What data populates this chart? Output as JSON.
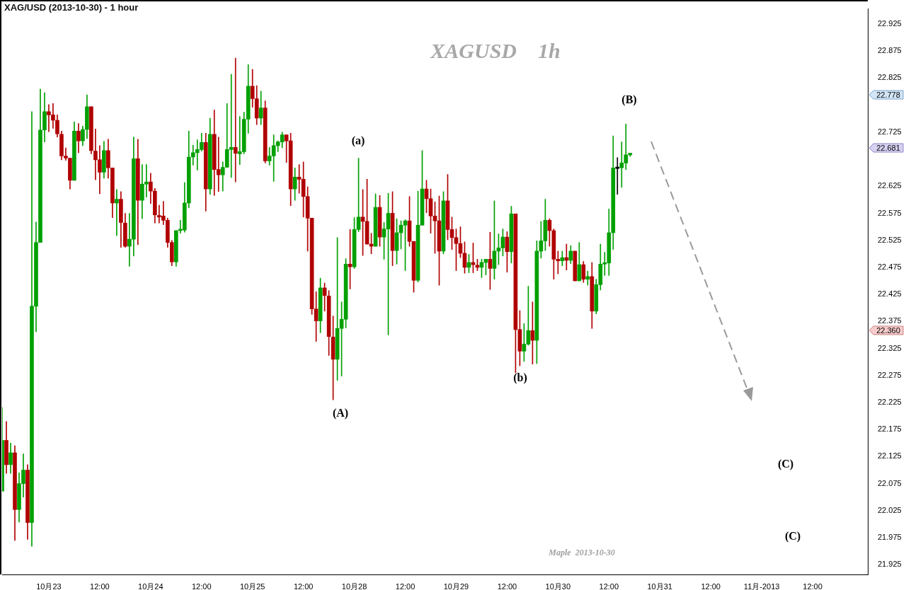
{
  "chart_data": {
    "type": "candlestick",
    "title": "XAG/USD (2013-10-30) - 1 hour",
    "subtitle": "XAGUSD    1h",
    "categories": [
      null,
      null,
      null,
      null,
      null,
      null,
      null,
      null,
      null,
      null,
      null,
      "10月23",
      null,
      null,
      null,
      null,
      null,
      null,
      null,
      null,
      null,
      null,
      null,
      "12:00",
      null,
      null,
      null,
      null,
      null,
      null,
      null,
      null,
      null,
      null,
      null,
      "10月24",
      null,
      null,
      null,
      null,
      null,
      null,
      null,
      null,
      null,
      null,
      null,
      "12:00",
      null,
      null,
      null,
      null,
      null,
      null,
      null,
      null,
      null,
      null,
      null,
      "10月25",
      null,
      null,
      null,
      null,
      null,
      null,
      null,
      null,
      null,
      null,
      null,
      "12:00",
      null,
      null,
      null,
      null,
      null,
      null,
      null,
      null,
      null,
      null,
      null,
      "10月28",
      null,
      null,
      null,
      null,
      null,
      null,
      null,
      null,
      null,
      null,
      null,
      "12:00",
      null,
      null,
      null,
      null,
      null,
      null,
      null,
      null,
      null,
      null,
      null,
      "10月29",
      null,
      null,
      null,
      null,
      null,
      null,
      null,
      null,
      null,
      null,
      null,
      "12:00",
      null,
      null,
      null,
      null,
      null,
      null,
      null,
      null,
      null,
      null,
      null,
      "10月30",
      null,
      null,
      null,
      null,
      null,
      null,
      null,
      null,
      null,
      null,
      null,
      "12:00",
      null,
      null,
      null,
      null,
      null,
      null,
      null,
      null,
      null,
      null,
      null,
      "10月31",
      null,
      null,
      null,
      null,
      null,
      null,
      null,
      null,
      null,
      null,
      null,
      "12:00",
      null,
      null,
      null,
      null,
      null,
      null,
      null,
      null,
      null,
      null,
      null,
      "11月-2013",
      null,
      null,
      null,
      null,
      null,
      null,
      null,
      null,
      null,
      null,
      null,
      "12:00",
      null,
      null,
      null,
      null,
      null,
      null,
      null,
      null,
      null,
      null,
      null,
      null,
      null
    ],
    "ohlc": [
      [
        22.061,
        22.216,
        22.061,
        22.155
      ],
      [
        22.155,
        22.19,
        22.094,
        22.11
      ],
      [
        22.11,
        22.15,
        22.094,
        22.132
      ],
      [
        22.132,
        22.145,
        21.97,
        22.027
      ],
      [
        22.027,
        22.095,
        22.004,
        22.075
      ],
      [
        22.075,
        22.13,
        22.05,
        22.1
      ],
      [
        22.1,
        22.11,
        21.972,
        22.003
      ],
      [
        22.003,
        22.763,
        21.959,
        22.403
      ],
      [
        22.403,
        22.559,
        22.356,
        22.521
      ],
      [
        22.521,
        22.805,
        22.521,
        22.729
      ],
      [
        22.729,
        22.798,
        22.707,
        22.763
      ],
      [
        22.763,
        22.776,
        22.726,
        22.757
      ],
      [
        22.757,
        22.778,
        22.732,
        22.747
      ],
      [
        22.747,
        22.757,
        22.716,
        22.722
      ],
      [
        22.721,
        22.727,
        22.674,
        22.681
      ],
      [
        22.681,
        22.696,
        22.673,
        22.677
      ],
      [
        22.677,
        22.677,
        22.62,
        22.636
      ],
      [
        22.636,
        22.744,
        22.636,
        22.727
      ],
      [
        22.727,
        22.741,
        22.687,
        22.709
      ],
      [
        22.709,
        22.736,
        22.7,
        22.73
      ],
      [
        22.73,
        22.794,
        22.713,
        22.772
      ],
      [
        22.772,
        22.772,
        22.685,
        22.691
      ],
      [
        22.69,
        22.731,
        22.637,
        22.674
      ],
      [
        22.674,
        22.7,
        22.611,
        22.651
      ],
      [
        22.651,
        22.708,
        22.64,
        22.691
      ],
      [
        22.691,
        22.712,
        22.64,
        22.659
      ],
      [
        22.659,
        22.659,
        22.567,
        22.594
      ],
      [
        22.594,
        22.619,
        22.534,
        22.601
      ],
      [
        22.601,
        22.615,
        22.512,
        22.558
      ],
      [
        22.557,
        22.575,
        22.512,
        22.514
      ],
      [
        22.514,
        22.575,
        22.477,
        22.527
      ],
      [
        22.527,
        22.716,
        22.496,
        22.676
      ],
      [
        22.676,
        22.712,
        22.517,
        22.599
      ],
      [
        22.599,
        22.665,
        22.565,
        22.629
      ],
      [
        22.629,
        22.665,
        22.605,
        22.633
      ],
      [
        22.633,
        22.649,
        22.593,
        22.616
      ],
      [
        22.616,
        22.621,
        22.557,
        22.572
      ],
      [
        22.571,
        22.59,
        22.557,
        22.568
      ],
      [
        22.57,
        22.597,
        22.554,
        22.562
      ],
      [
        22.562,
        22.566,
        22.512,
        22.521
      ],
      [
        22.521,
        22.525,
        22.478,
        22.485
      ],
      [
        22.485,
        22.543,
        22.477,
        22.543
      ],
      [
        22.543,
        22.562,
        22.538,
        22.544
      ],
      [
        22.544,
        22.632,
        22.54,
        22.594
      ],
      [
        22.594,
        22.727,
        22.585,
        22.679
      ],
      [
        22.679,
        22.701,
        22.664,
        22.687
      ],
      [
        22.687,
        22.711,
        22.655,
        22.693
      ],
      [
        22.693,
        22.723,
        22.69,
        22.706
      ],
      [
        22.706,
        22.723,
        22.579,
        22.62
      ],
      [
        22.62,
        22.751,
        22.61,
        22.721
      ],
      [
        22.721,
        22.766,
        22.608,
        22.656
      ],
      [
        22.656,
        22.716,
        22.615,
        22.646
      ],
      [
        22.646,
        22.67,
        22.616,
        22.66
      ],
      [
        22.66,
        22.778,
        22.66,
        22.693
      ],
      [
        22.693,
        22.832,
        22.641,
        22.697
      ],
      [
        22.697,
        22.862,
        22.633,
        22.686
      ],
      [
        22.685,
        22.754,
        22.665,
        22.689
      ],
      [
        22.689,
        22.762,
        22.685,
        22.749
      ],
      [
        22.749,
        22.85,
        22.723,
        22.81
      ],
      [
        22.81,
        22.841,
        22.771,
        22.787
      ],
      [
        22.787,
        22.811,
        22.739,
        22.751
      ],
      [
        22.751,
        22.801,
        22.739,
        22.77
      ],
      [
        22.77,
        22.783,
        22.668,
        22.672
      ],
      [
        22.672,
        22.697,
        22.664,
        22.681
      ],
      [
        22.681,
        22.72,
        22.634,
        22.7
      ],
      [
        22.7,
        22.709,
        22.689,
        22.707
      ],
      [
        22.707,
        22.725,
        22.696,
        22.72
      ],
      [
        22.72,
        22.72,
        22.669,
        22.709
      ],
      [
        22.709,
        22.723,
        22.589,
        22.62
      ],
      [
        22.62,
        22.659,
        22.599,
        22.642
      ],
      [
        22.642,
        22.665,
        22.612,
        22.638
      ],
      [
        22.638,
        22.67,
        22.568,
        22.606
      ],
      [
        22.606,
        22.624,
        22.505,
        22.566
      ],
      [
        22.566,
        22.566,
        22.388,
        22.398
      ],
      [
        22.398,
        22.43,
        22.338,
        22.376
      ],
      [
        22.376,
        22.455,
        22.354,
        22.437
      ],
      [
        22.437,
        22.446,
        22.394,
        22.423
      ],
      [
        22.422,
        22.432,
        22.312,
        22.347
      ],
      [
        22.346,
        22.385,
        22.23,
        22.305
      ],
      [
        22.305,
        22.53,
        22.266,
        22.362
      ],
      [
        22.362,
        22.411,
        22.274,
        22.379
      ],
      [
        22.379,
        22.491,
        22.363,
        22.481
      ],
      [
        22.481,
        22.545,
        22.435,
        22.476
      ],
      [
        22.476,
        22.567,
        22.473,
        22.545
      ],
      [
        22.545,
        22.677,
        22.541,
        22.568
      ],
      [
        22.568,
        22.619,
        22.497,
        22.56
      ],
      [
        22.56,
        22.638,
        22.518,
        22.518
      ],
      [
        22.518,
        22.538,
        22.5,
        22.514
      ],
      [
        22.514,
        22.611,
        22.514,
        22.586
      ],
      [
        22.586,
        22.608,
        22.514,
        22.531
      ],
      [
        22.531,
        22.558,
        22.49,
        22.546
      ],
      [
        22.546,
        22.612,
        22.35,
        22.575
      ],
      [
        22.575,
        22.615,
        22.478,
        22.506
      ],
      [
        22.506,
        22.565,
        22.481,
        22.539
      ],
      [
        22.539,
        22.561,
        22.509,
        22.553
      ],
      [
        22.553,
        22.563,
        22.469,
        22.561
      ],
      [
        22.561,
        22.606,
        22.514,
        22.523
      ],
      [
        22.523,
        22.523,
        22.429,
        22.451
      ],
      [
        22.451,
        22.616,
        22.448,
        22.553
      ],
      [
        22.553,
        22.691,
        22.553,
        22.62
      ],
      [
        22.62,
        22.636,
        22.576,
        22.602
      ],
      [
        22.602,
        22.62,
        22.538,
        22.57
      ],
      [
        22.57,
        22.596,
        22.501,
        22.561
      ],
      [
        22.561,
        22.607,
        22.442,
        22.505
      ],
      [
        22.505,
        22.615,
        22.5,
        22.598
      ],
      [
        22.598,
        22.647,
        22.526,
        22.545
      ],
      [
        22.545,
        22.568,
        22.508,
        22.53
      ],
      [
        22.53,
        22.546,
        22.469,
        22.519
      ],
      [
        22.519,
        22.55,
        22.493,
        22.501
      ],
      [
        22.501,
        22.522,
        22.464,
        22.475
      ],
      [
        22.475,
        22.499,
        22.465,
        22.484
      ],
      [
        22.484,
        22.52,
        22.465,
        22.48
      ],
      [
        22.479,
        22.49,
        22.469,
        22.475
      ],
      [
        22.475,
        22.49,
        22.456,
        22.484
      ],
      [
        22.484,
        22.49,
        22.461,
        22.49
      ],
      [
        22.49,
        22.54,
        22.434,
        22.473
      ],
      [
        22.473,
        22.598,
        22.453,
        22.505
      ],
      [
        22.505,
        22.537,
        22.48,
        22.511
      ],
      [
        22.511,
        22.546,
        22.496,
        22.531
      ],
      [
        22.531,
        22.541,
        22.466,
        22.504
      ],
      [
        22.504,
        22.588,
        22.483,
        22.574
      ],
      [
        22.574,
        22.574,
        22.28,
        22.36
      ],
      [
        22.36,
        22.395,
        22.293,
        22.32
      ],
      [
        22.32,
        22.371,
        22.301,
        22.333
      ],
      [
        22.333,
        22.44,
        22.331,
        22.358
      ],
      [
        22.358,
        22.411,
        22.296,
        22.34
      ],
      [
        22.34,
        22.524,
        22.297,
        22.505
      ],
      [
        22.505,
        22.56,
        22.492,
        22.524
      ],
      [
        22.524,
        22.601,
        22.506,
        22.562
      ],
      [
        22.562,
        22.565,
        22.514,
        22.543
      ],
      [
        22.543,
        22.546,
        22.453,
        22.49
      ],
      [
        22.49,
        22.505,
        22.463,
        22.487
      ],
      [
        22.487,
        22.505,
        22.478,
        22.493
      ],
      [
        22.493,
        22.518,
        22.47,
        22.488
      ],
      [
        22.488,
        22.515,
        22.482,
        22.505
      ],
      [
        22.505,
        22.505,
        22.45,
        22.45
      ],
      [
        22.45,
        22.521,
        22.45,
        22.48
      ],
      [
        22.48,
        22.486,
        22.447,
        22.453
      ],
      [
        22.453,
        22.468,
        22.442,
        22.458
      ],
      [
        22.458,
        22.484,
        22.362,
        22.394
      ],
      [
        22.394,
        22.453,
        22.389,
        22.443
      ],
      [
        22.443,
        22.518,
        22.433,
        22.481
      ],
      [
        22.481,
        22.503,
        22.46,
        22.483
      ],
      [
        22.483,
        22.583,
        22.46,
        22.539
      ],
      [
        22.539,
        22.718,
        22.508,
        22.659
      ],
      [
        22.658,
        22.678,
        22.61,
        22.658
      ],
      [
        22.659,
        22.707,
        22.623,
        22.668
      ],
      [
        22.668,
        22.74,
        22.656,
        22.683
      ],
      [
        22.683,
        22.686,
        22.68,
        22.686
      ],
      null,
      null,
      null,
      null,
      null,
      null,
      null,
      null,
      null,
      null,
      null,
      null,
      null,
      null,
      null,
      null,
      null,
      null,
      null,
      null,
      null,
      null,
      null,
      null,
      null,
      null,
      null,
      null,
      null,
      null,
      null,
      null,
      null,
      null,
      null,
      null,
      null,
      null,
      null,
      null,
      null,
      null,
      null,
      null,
      null,
      null,
      null,
      null,
      null,
      null,
      null,
      null,
      null,
      null,
      null,
      null
    ],
    "colors": [
      "#00a000",
      "#b00000",
      "#00a000",
      "#b00000",
      "#00a000",
      "#00a000",
      "#b00000",
      "#00a000",
      "#00a000",
      "#00a000",
      "#00a000",
      "#b00000",
      "#b00000",
      "#b00000",
      "#b00000",
      "#b00000",
      "#b00000",
      "#00a000",
      "#b00000",
      "#00a000",
      "#00a000",
      "#b00000",
      "#b00000",
      "#b00000",
      "#00a000",
      "#b00000",
      "#b00000",
      "#00a000",
      "#b00000",
      "#b00000",
      "#00a000",
      "#00a000",
      "#b00000",
      "#00a000",
      "#00a000",
      "#b00000",
      "#b00000",
      "#b00000",
      "#b00000",
      "#b00000",
      "#b00000",
      "#00a000",
      "#00a000",
      "#00a000",
      "#00a000",
      "#00a000",
      "#00a000",
      "#00a000",
      "#b00000",
      "#00a000",
      "#b00000",
      "#b00000",
      "#00a000",
      "#00a000",
      "#00a000",
      "#b00000",
      "#00a000",
      "#00a000",
      "#00a000",
      "#b00000",
      "#b00000",
      "#00a000",
      "#b00000",
      "#00a000",
      "#00a000",
      "#00a000",
      "#00a000",
      "#b00000",
      "#b00000",
      "#00a000",
      "#b00000",
      "#b00000",
      "#b00000",
      "#b00000",
      "#b00000",
      "#00a000",
      "#b00000",
      "#b00000",
      "#b00000",
      "#00a000",
      "#00a000",
      "#00a000",
      "#b00000",
      "#00a000",
      "#00a000",
      "#b00000",
      "#b00000",
      "#b00000",
      "#00a000",
      "#b00000",
      "#00a000",
      "#00a000",
      "#b00000",
      "#00a000",
      "#00a000",
      "#00a000",
      "#b00000",
      "#b00000",
      "#00a000",
      "#00a000",
      "#b00000",
      "#b00000",
      "#b00000",
      "#b00000",
      "#00a000",
      "#b00000",
      "#b00000",
      "#b00000",
      "#b00000",
      "#b00000",
      "#00a000",
      "#b00000",
      "#b00000",
      "#00a000",
      "#00a000",
      "#b00000",
      "#00a000",
      "#00a000",
      "#00a000",
      "#b00000",
      "#00a000",
      "#b00000",
      "#b00000",
      "#00a000",
      "#00a000",
      "#b00000",
      "#00a000",
      "#00a000",
      "#00a000",
      "#b00000",
      "#b00000",
      "#b00000",
      "#00a000",
      "#b00000",
      "#00a000",
      "#b00000",
      "#00a000",
      "#b00000",
      "#00a000",
      "#b00000",
      "#00a000",
      "#00a000",
      "#00a000",
      "#00a000",
      "#00a000",
      "#000000",
      "#00a000",
      "#00a000",
      "#00a000",
      null,
      null,
      null,
      null,
      null,
      null,
      null,
      null,
      null,
      null,
      null,
      null,
      null,
      null,
      null,
      null,
      null,
      null,
      null,
      null,
      null,
      null,
      null,
      null,
      null,
      null,
      null,
      null,
      null,
      null,
      null,
      null,
      null,
      null,
      null,
      null,
      null,
      null,
      null,
      null,
      null,
      null,
      null,
      null,
      null,
      null,
      null,
      null,
      null,
      null,
      null,
      null,
      null,
      null,
      null,
      null
    ],
    "ylim": [
      21.907,
      22.953
    ],
    "yticks": [
      21.925,
      21.975,
      22.025,
      22.075,
      22.125,
      22.175,
      22.225,
      22.275,
      22.325,
      22.375,
      22.425,
      22.475,
      22.525,
      22.575,
      22.625,
      22.725,
      22.825,
      22.875,
      22.925
    ],
    "annotations": [
      "(B)",
      "(a)",
      "(A)",
      "(b)",
      "(C)",
      "(C)",
      "Maple  2013-10-30",
      "22.778",
      "22.681",
      "22.360"
    ]
  }
}
